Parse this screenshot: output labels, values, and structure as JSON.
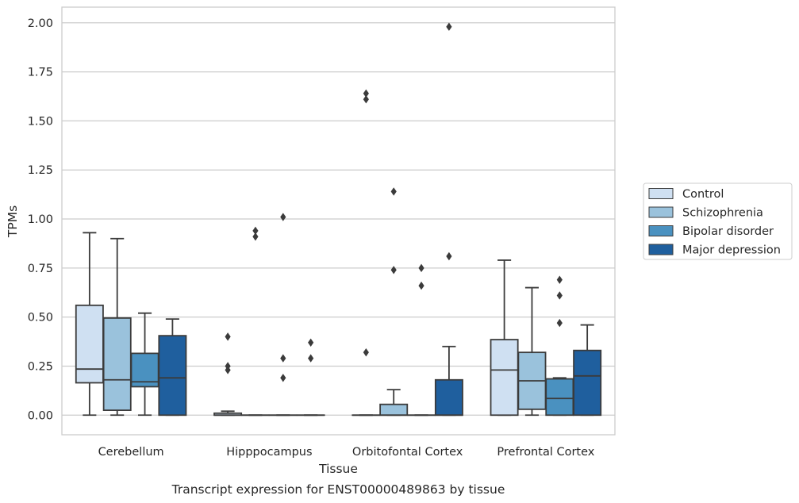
{
  "chart_data": {
    "type": "box",
    "xlabel": "Tissue",
    "ylabel": "TPMs",
    "caption": "Transcript expression for ENST00000489863 by tissue",
    "ylim": [
      -0.1,
      2.08
    ],
    "yticks": [
      "0.00",
      "0.25",
      "0.50",
      "0.75",
      "1.00",
      "1.25",
      "1.50",
      "1.75",
      "2.00"
    ],
    "grid": "horizontal",
    "legend_position": "right",
    "categories": [
      "Cerebellum",
      "Hipppocampus",
      "Orbitofontal Cortex",
      "Prefrontal Cortex"
    ],
    "series": [
      {
        "name": "Control",
        "color": "#cfe0f2",
        "boxes": [
          {
            "q1": 0.165,
            "median": 0.235,
            "q3": 0.56,
            "whisker_low": 0.0,
            "whisker_high": 0.93,
            "outliers": []
          },
          {
            "q1": 0.0,
            "median": 0.0,
            "q3": 0.01,
            "whisker_low": 0.0,
            "whisker_high": 0.02,
            "outliers": [
              0.23,
              0.25,
              0.4
            ]
          },
          {
            "q1": 0.0,
            "median": 0.0,
            "q3": 0.0,
            "whisker_low": 0.0,
            "whisker_high": 0.0,
            "outliers": [
              0.32,
              1.61,
              1.64
            ]
          },
          {
            "q1": 0.0,
            "median": 0.23,
            "q3": 0.385,
            "whisker_low": 0.0,
            "whisker_high": 0.79,
            "outliers": []
          }
        ]
      },
      {
        "name": "Schizophrenia",
        "color": "#9ac2dc",
        "boxes": [
          {
            "q1": 0.025,
            "median": 0.18,
            "q3": 0.495,
            "whisker_low": 0.0,
            "whisker_high": 0.9,
            "outliers": []
          },
          {
            "q1": 0.0,
            "median": 0.0,
            "q3": 0.0,
            "whisker_low": 0.0,
            "whisker_high": 0.0,
            "outliers": [
              0.91,
              0.94
            ]
          },
          {
            "q1": 0.0,
            "median": 0.0,
            "q3": 0.055,
            "whisker_low": 0.0,
            "whisker_high": 0.13,
            "outliers": [
              0.74,
              1.14
            ]
          },
          {
            "q1": 0.03,
            "median": 0.175,
            "q3": 0.32,
            "whisker_low": 0.0,
            "whisker_high": 0.65,
            "outliers": []
          }
        ]
      },
      {
        "name": "Bipolar disorder",
        "color": "#4a91c0",
        "boxes": [
          {
            "q1": 0.145,
            "median": 0.17,
            "q3": 0.315,
            "whisker_low": 0.0,
            "whisker_high": 0.52,
            "outliers": []
          },
          {
            "q1": 0.0,
            "median": 0.0,
            "q3": 0.0,
            "whisker_low": 0.0,
            "whisker_high": 0.0,
            "outliers": [
              0.19,
              0.29,
              1.01
            ]
          },
          {
            "q1": 0.0,
            "median": 0.0,
            "q3": 0.0,
            "whisker_low": 0.0,
            "whisker_high": 0.0,
            "outliers": [
              0.66,
              0.75
            ]
          },
          {
            "q1": 0.0,
            "median": 0.085,
            "q3": 0.185,
            "whisker_low": 0.0,
            "whisker_high": 0.19,
            "outliers": [
              0.47,
              0.61,
              0.69
            ]
          }
        ]
      },
      {
        "name": "Major depression",
        "color": "#1f5f9e",
        "boxes": [
          {
            "q1": 0.0,
            "median": 0.19,
            "q3": 0.405,
            "whisker_low": 0.0,
            "whisker_high": 0.49,
            "outliers": []
          },
          {
            "q1": 0.0,
            "median": 0.0,
            "q3": 0.0,
            "whisker_low": 0.0,
            "whisker_high": 0.0,
            "outliers": [
              0.29,
              0.37
            ]
          },
          {
            "q1": 0.0,
            "median": 0.0,
            "q3": 0.18,
            "whisker_low": 0.0,
            "whisker_high": 0.35,
            "outliers": [
              0.81,
              1.98
            ]
          },
          {
            "q1": 0.0,
            "median": 0.2,
            "q3": 0.33,
            "whisker_low": 0.0,
            "whisker_high": 0.46,
            "outliers": []
          }
        ]
      }
    ]
  }
}
